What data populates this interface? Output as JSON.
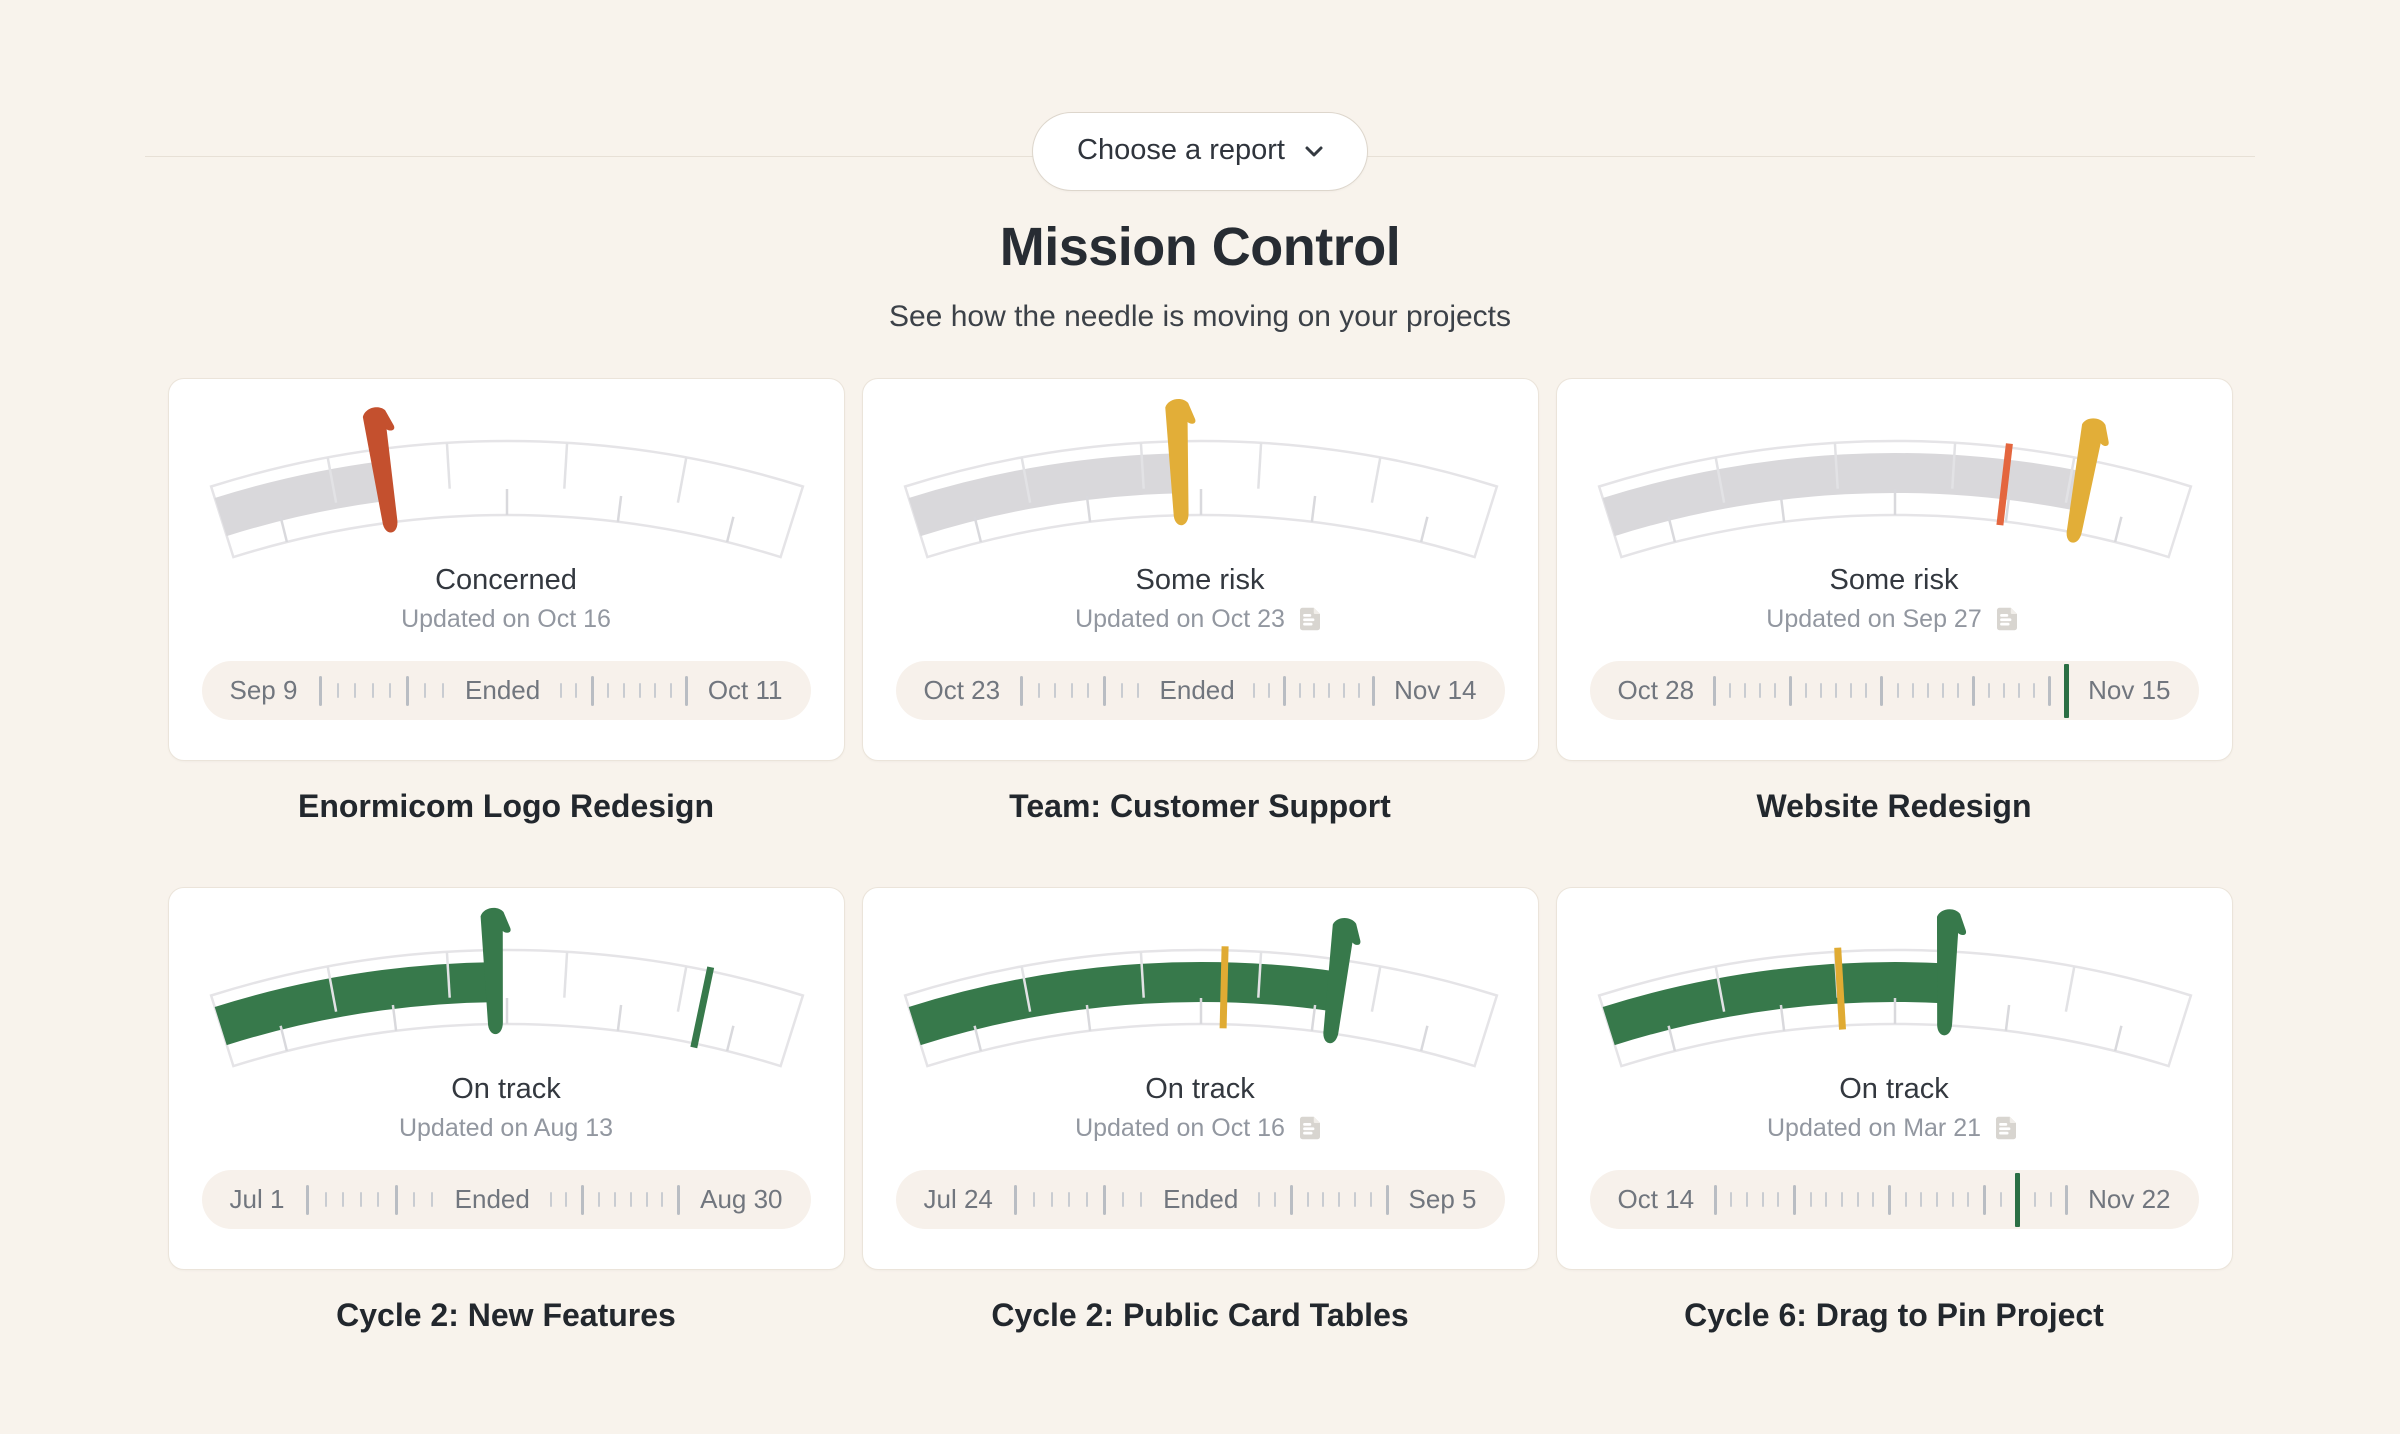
{
  "header": {
    "report_picker_label": "Choose a report",
    "title": "Mission Control",
    "subtitle": "See how the needle is moving on your projects"
  },
  "colors": {
    "background": "#f8f3ec",
    "card": "#ffffff",
    "track_gray": "#d9d8db",
    "green": "#37794b",
    "yellow": "#e2ae38",
    "red": "#c4502e",
    "orange_marker": "#e4663e",
    "timeline_marker_green": "#2b6f44"
  },
  "projects": [
    {
      "name": "Enormicom Logo Redesign",
      "status": "Concerned",
      "updated": "Updated on Oct 16",
      "has_note": false,
      "gauge": {
        "needle_pos": 0.29,
        "progress_color": "#d9d8db",
        "needle_color": "#c4502e",
        "marker_pos": null,
        "marker_color": null
      },
      "timeline": {
        "start": "Sep 9",
        "middle": "Ended",
        "end": "Oct 11",
        "ticks_left": "M....M..",
        "ticks_right": "..M.....M",
        "ticks": null
      }
    },
    {
      "name": "Team: Customer Support",
      "status": "Some risk",
      "updated": "Updated on Oct 23",
      "has_note": true,
      "gauge": {
        "needle_pos": 0.465,
        "progress_color": "#d9d8db",
        "needle_color": "#e2ae38",
        "marker_pos": null,
        "marker_color": null
      },
      "timeline": {
        "start": "Oct 23",
        "middle": "Ended",
        "end": "Nov 14",
        "ticks_left": "M....M..",
        "ticks_right": "..M.....M",
        "ticks": null
      }
    },
    {
      "name": "Website Redesign",
      "status": "Some risk",
      "updated": "Updated on Sep 27",
      "has_note": true,
      "gauge": {
        "needle_pos": 0.825,
        "progress_color": "#d9d8db",
        "needle_color": "#e2ae38",
        "marker_pos": 0.69,
        "marker_color": "#e4663e"
      },
      "timeline": {
        "start": "Oct 28",
        "middle": null,
        "end": "Nov 15",
        "ticks_left": null,
        "ticks_right": null,
        "ticks": "M....M.....M.....M....MG"
      }
    },
    {
      "name": "Cycle 2: New Features",
      "status": "On track",
      "updated": "Updated on Aug 13",
      "has_note": false,
      "gauge": {
        "needle_pos": 0.48,
        "progress_color": "#37794b",
        "needle_color": "#37794b",
        "marker_pos": 0.84,
        "marker_color": "#37794b"
      },
      "timeline": {
        "start": "Jul 1",
        "middle": "Ended",
        "end": "Aug 30",
        "ticks_left": "M....M..",
        "ticks_right": "..M.....M",
        "ticks": null
      }
    },
    {
      "name": "Cycle 2: Public Card Tables",
      "status": "On track",
      "updated": "Updated on Oct 16",
      "has_note": true,
      "gauge": {
        "needle_pos": 0.735,
        "progress_color": "#37794b",
        "needle_color": "#37794b",
        "marker_pos": 0.54,
        "marker_color": "#e0ab33"
      },
      "timeline": {
        "start": "Jul 24",
        "middle": "Ended",
        "end": "Sep 5",
        "ticks_left": "M....M..",
        "ticks_right": "..M.....M",
        "ticks": null
      }
    },
    {
      "name": "Cycle 6: Drag to Pin Project",
      "status": "On track",
      "updated": "Updated on Mar 21",
      "has_note": true,
      "gauge": {
        "needle_pos": 0.59,
        "progress_color": "#37794b",
        "needle_color": "#37794b",
        "marker_pos": 0.405,
        "marker_color": "#e0ab33"
      },
      "timeline": {
        "start": "Oct 14",
        "middle": null,
        "end": "Nov 22",
        "ticks_left": null,
        "ticks_right": null,
        "ticks": "M....M.....M.....M.G..M"
      }
    }
  ]
}
